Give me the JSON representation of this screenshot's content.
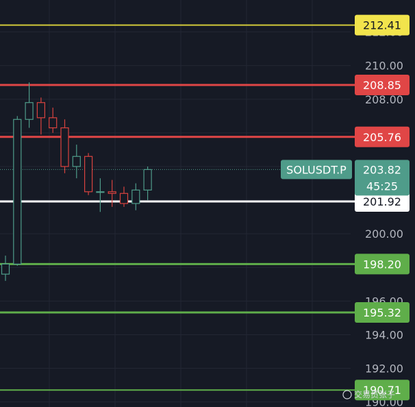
{
  "chart_data": {
    "type": "candlestick",
    "symbol": "SOLUSDT.P",
    "ylim": [
      189.7,
      213.9
    ],
    "y_ticks": [
      "212.00",
      "210.00",
      "208.00",
      "200.00",
      "196.00",
      "194.00",
      "192.00",
      "190.00"
    ],
    "y_tick_values": [
      212,
      210,
      208,
      200,
      196,
      194,
      192,
      190
    ],
    "price_label": {
      "price": "203.82",
      "countdown": "45:25",
      "value": 203.82
    },
    "levels": [
      {
        "label": "212.41",
        "value": 212.41,
        "color": "#d4cb3a",
        "badge_bg": "#f2e44c",
        "badge_text": "#131722",
        "width": 2
      },
      {
        "label": "208.85",
        "value": 208.85,
        "color": "#e04646",
        "badge_bg": "#e04646",
        "badge_text": "#ffffff",
        "width": 3
      },
      {
        "label": "205.76",
        "value": 205.76,
        "color": "#e04646",
        "badge_bg": "#e04646",
        "badge_text": "#ffffff",
        "width": 3
      },
      {
        "label": "201.92",
        "value": 201.92,
        "color": "#ffffff",
        "badge_bg": "#ffffff",
        "badge_text": "#131722",
        "width": 3
      },
      {
        "label": "198.20",
        "value": 198.2,
        "color": "#5fae4a",
        "badge_bg": "#5fae4a",
        "badge_text": "#ffffff",
        "width": 3
      },
      {
        "label": "195.32",
        "value": 195.32,
        "color": "#5fae4a",
        "badge_bg": "#5fae4a",
        "badge_text": "#ffffff",
        "width": 3
      },
      {
        "label": "190.71",
        "value": 190.71,
        "color": "#5fae4a",
        "badge_bg": "#5fae4a",
        "badge_text": "#ffffff",
        "width": 2
      }
    ],
    "candles": [
      {
        "o": 197.6,
        "h": 198.7,
        "l": 197.2,
        "c": 198.2
      },
      {
        "o": 198.2,
        "h": 207.0,
        "l": 198.1,
        "c": 206.8
      },
      {
        "o": 206.8,
        "h": 209.0,
        "l": 206.3,
        "c": 207.8
      },
      {
        "o": 207.8,
        "h": 208.1,
        "l": 205.9,
        "c": 206.9
      },
      {
        "o": 206.9,
        "h": 207.5,
        "l": 206.0,
        "c": 206.3
      },
      {
        "o": 206.3,
        "h": 206.8,
        "l": 203.6,
        "c": 204.0
      },
      {
        "o": 204.0,
        "h": 205.3,
        "l": 203.3,
        "c": 204.6
      },
      {
        "o": 204.6,
        "h": 204.8,
        "l": 202.3,
        "c": 202.5
      },
      {
        "o": 202.5,
        "h": 203.3,
        "l": 201.3,
        "c": 202.5
      },
      {
        "o": 202.5,
        "h": 203.2,
        "l": 201.6,
        "c": 202.4
      },
      {
        "o": 202.4,
        "h": 202.8,
        "l": 201.6,
        "c": 201.8
      },
      {
        "o": 201.8,
        "h": 203.0,
        "l": 201.4,
        "c": 202.6
      },
      {
        "o": 202.6,
        "h": 204.0,
        "l": 202.0,
        "c": 203.82
      }
    ],
    "colors": {
      "background": "#161a25",
      "grid": "#232734",
      "up": "#4f9c8a",
      "down": "#d9433f",
      "price_badge": "#4f9c8a",
      "current_line": "#4f9c8a"
    },
    "grid": true
  },
  "watermark": "交易员张子"
}
